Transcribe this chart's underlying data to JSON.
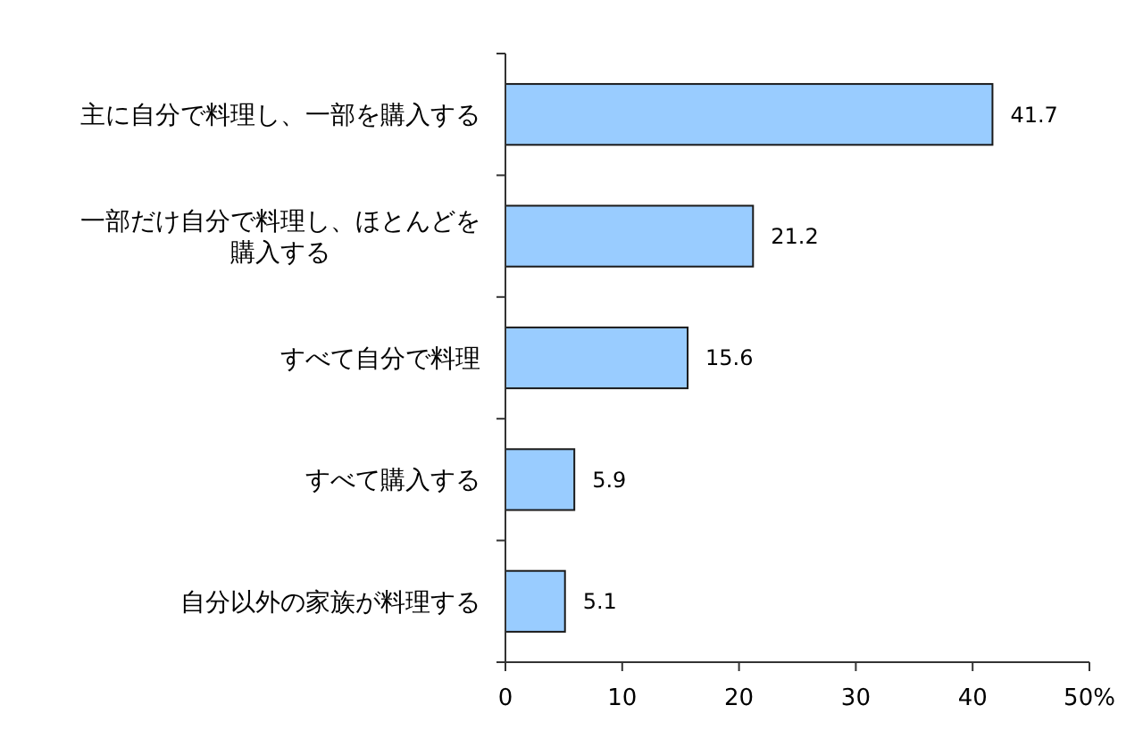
{
  "chart_data": {
    "type": "bar",
    "orientation": "horizontal",
    "categories": [
      "主に自分で料理し、一部を購入する",
      "一部だけ自分で料理し、ほとんどを購入する",
      "すべて自分で料理",
      "すべて購入する",
      "自分以外の家族が料理する"
    ],
    "values": [
      41.7,
      21.2,
      15.6,
      5.9,
      5.1
    ],
    "color": "#99ccff",
    "xlim": [
      0,
      50
    ],
    "xticks": [
      0,
      10,
      20,
      30,
      40,
      {
        "value": 50,
        "label": "50%"
      }
    ],
    "data_labels": true,
    "grid": false
  }
}
